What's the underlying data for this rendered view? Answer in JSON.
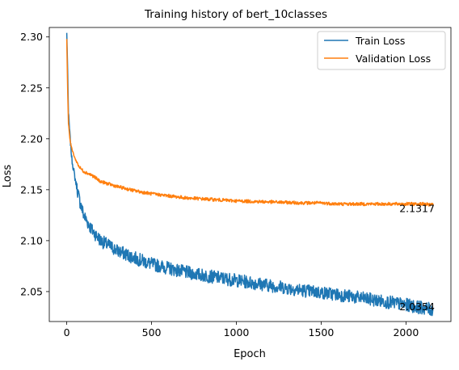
{
  "chart_data": {
    "type": "line",
    "title": "Training history of bert_10classes",
    "xlabel": "Epoch",
    "ylabel": "Loss",
    "xlim": [
      -103,
      2265
    ],
    "ylim": [
      2.0206,
      2.3093
    ],
    "xticks": [
      0,
      500,
      1000,
      1500,
      2000
    ],
    "yticks": [
      2.05,
      2.1,
      2.15,
      2.2,
      2.25,
      2.3
    ],
    "ytick_labels": [
      "2.05",
      "2.10",
      "2.15",
      "2.20",
      "2.25",
      "2.30"
    ],
    "grid": false,
    "legend_position": "top-right",
    "colors": {
      "train": "#1f77b4",
      "validation": "#ff7f0e"
    },
    "series": [
      {
        "name": "Train Loss",
        "x": [
          0,
          5,
          10,
          20,
          30,
          50,
          75,
          100,
          150,
          200,
          300,
          400,
          500,
          600,
          700,
          800,
          1000,
          1200,
          1400,
          1500,
          1600,
          1800,
          2000,
          2100,
          2160
        ],
        "values": [
          2.304,
          2.27,
          2.225,
          2.2,
          2.18,
          2.16,
          2.14,
          2.125,
          2.11,
          2.1,
          2.09,
          2.083,
          2.077,
          2.073,
          2.069,
          2.066,
          2.061,
          2.056,
          2.051,
          2.049,
          2.047,
          2.042,
          2.037,
          2.034,
          2.032
        ],
        "noise": 0.0065,
        "final_label": "2.0354"
      },
      {
        "name": "Validation Loss",
        "x": [
          0,
          5,
          10,
          20,
          30,
          50,
          75,
          100,
          150,
          200,
          300,
          400,
          500,
          600,
          700,
          800,
          1000,
          1200,
          1400,
          1500,
          1600,
          1800,
          2000,
          2100,
          2160
        ],
        "values": [
          2.298,
          2.25,
          2.215,
          2.198,
          2.19,
          2.18,
          2.172,
          2.168,
          2.164,
          2.158,
          2.153,
          2.149,
          2.146,
          2.144,
          2.142,
          2.141,
          2.139,
          2.138,
          2.137,
          2.137,
          2.136,
          2.136,
          2.136,
          2.136,
          2.135
        ],
        "noise": 0.0016,
        "final_label": "2.1317"
      }
    ]
  }
}
